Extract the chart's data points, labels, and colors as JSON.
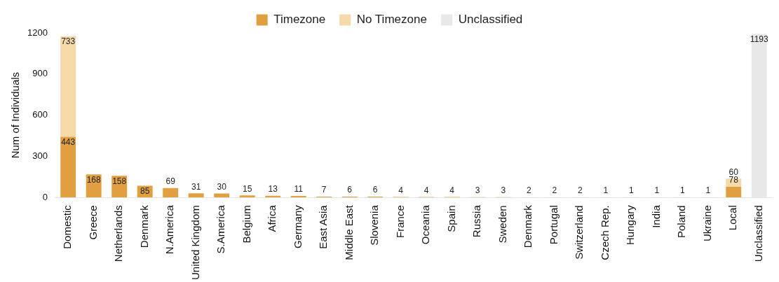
{
  "chart_data": {
    "type": "bar",
    "stacked": true,
    "ylabel": "Num of Individuals",
    "legend": "top",
    "data_labels": true,
    "categories": [
      "Domestic",
      "Greece",
      "Netherlands",
      "Denmark",
      "N.America",
      "United Kingdom",
      "S.America",
      "Belgium",
      "Africa",
      "Germany",
      "East Asia",
      "Middle East",
      "Slovenia",
      "France",
      "Oceania",
      "Spain",
      "Russia",
      "Sweden",
      "Denmark",
      "Portugal",
      "Switzerland",
      "Czech Rep.",
      "Hungary",
      "India",
      "Poland",
      "Ukraine",
      "Local",
      "Unclassified"
    ],
    "series": [
      {
        "name": "Timezone",
        "color": "#e0a040",
        "values": [
          443,
          168,
          158,
          85,
          69,
          31,
          30,
          15,
          13,
          11,
          7,
          6,
          6,
          4,
          4,
          4,
          3,
          3,
          2,
          2,
          2,
          1,
          1,
          1,
          1,
          1,
          78,
          null
        ]
      },
      {
        "name": "No Timezone",
        "color": "#f5d9a8",
        "values": [
          733,
          null,
          null,
          null,
          null,
          null,
          null,
          null,
          null,
          null,
          null,
          null,
          null,
          null,
          null,
          null,
          null,
          null,
          null,
          null,
          null,
          null,
          null,
          null,
          null,
          null,
          60,
          null
        ]
      },
      {
        "name": "Unclassified",
        "color": "#e8e8e8",
        "values": [
          null,
          null,
          null,
          null,
          null,
          null,
          null,
          null,
          null,
          null,
          null,
          null,
          null,
          null,
          null,
          null,
          null,
          null,
          null,
          null,
          null,
          null,
          null,
          null,
          null,
          null,
          null,
          1193
        ]
      }
    ],
    "ylim": [
      0,
      1200
    ],
    "yticks": [
      0,
      300,
      600,
      900,
      1200
    ]
  }
}
